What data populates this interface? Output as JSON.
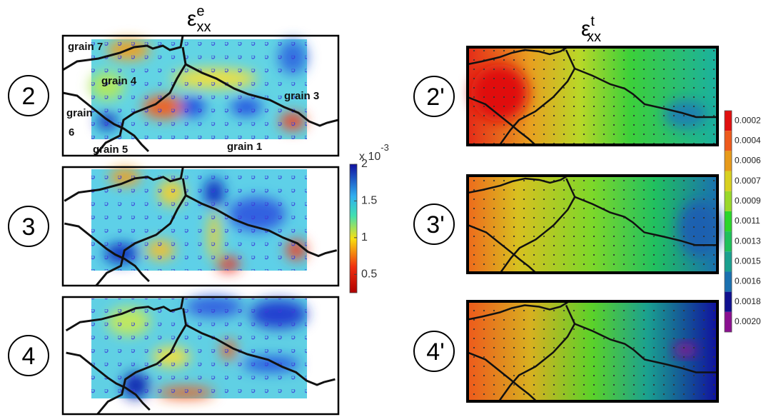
{
  "left_title": {
    "symbol": "ε",
    "sup": "e",
    "sub": "xx"
  },
  "right_title": {
    "symbol": "ε",
    "sup": "t",
    "sub": "xx"
  },
  "left_panels": [
    "2",
    "3",
    "4"
  ],
  "right_panels": [
    "2'",
    "3'",
    "4'"
  ],
  "grain_labels": {
    "g7": "grain 7",
    "g4": "grain 4",
    "g3": "grain 3",
    "g6_line1": "grain",
    "g6_line2": "6",
    "g5": "grain 5",
    "g1": "grain 1"
  },
  "left_colorbar": {
    "multiplier": "x 10",
    "exponent": "-3",
    "ylim": [
      0.25,
      2
    ],
    "yticks": [
      0.5,
      1,
      1.5,
      2
    ]
  },
  "right_colorbar": {
    "labels": [
      "0.0002",
      "0.0004",
      "0.0006",
      "0.0007",
      "0.0009",
      "0.0011",
      "0.0013",
      "0.0015",
      "0.0016",
      "0.0018",
      "0.0020"
    ],
    "colors": [
      "#e01010",
      "#ee5a1c",
      "#e79a1a",
      "#d8d020",
      "#9ad82a",
      "#2bd62b",
      "#1ec05a",
      "#1aa090",
      "#1a70b0",
      "#10108f",
      "#8a1090"
    ]
  }
}
